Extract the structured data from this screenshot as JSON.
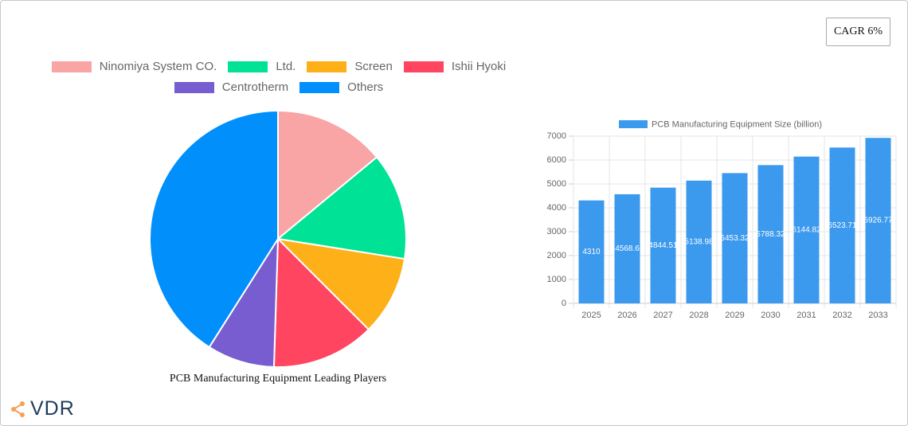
{
  "chart_data": [
    {
      "type": "pie",
      "title": "PCB Manufacturing Equipment Leading Players",
      "categories": [
        "Ninomiya System CO.",
        "Ltd.",
        "Screen",
        "Ishii Hyoki",
        "Centrotherm",
        "Others"
      ],
      "values": [
        14,
        13.5,
        10,
        13,
        8.5,
        41
      ],
      "colors": [
        "#f9a4a5",
        "#00e396",
        "#feb019",
        "#ff4560",
        "#775dd0",
        "#008ffb"
      ]
    },
    {
      "type": "bar",
      "series": [
        {
          "name": "PCB Manufacturing Equipment Size (billion)",
          "color": "#3b99ee",
          "values": [
            4310,
            4568.6,
            4844.51,
            5138.98,
            5453.32,
            5788.32,
            6144.82,
            6523.71,
            6926.77
          ]
        }
      ],
      "categories": [
        "2025",
        "2026",
        "2027",
        "2028",
        "2029",
        "2030",
        "2031",
        "2032",
        "2033"
      ],
      "ylim": [
        0,
        7000
      ],
      "yticks": [
        0,
        1000,
        2000,
        3000,
        4000,
        5000,
        6000,
        7000
      ],
      "grid": true
    }
  ],
  "cagr": "CAGR 6%",
  "logo": "VDR"
}
